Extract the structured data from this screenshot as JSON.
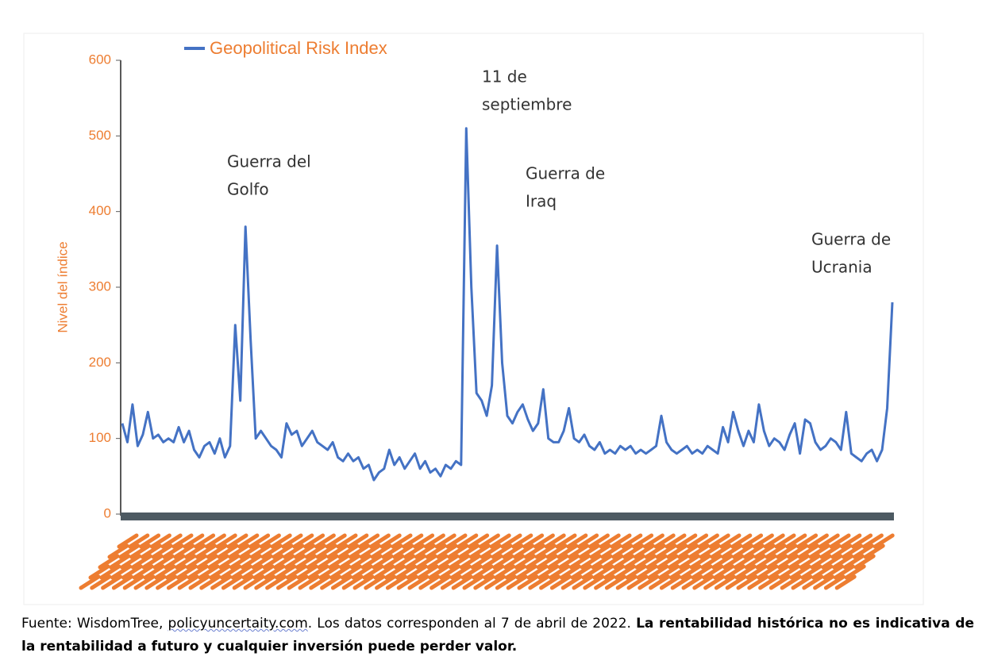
{
  "chart_data": {
    "type": "line",
    "legend": "Geopolitical Risk Index",
    "ylabel": "Nivel del índice",
    "ylim": [
      0,
      600
    ],
    "yticks": [
      0,
      100,
      200,
      300,
      400,
      500,
      600
    ],
    "grid": false,
    "categories": [
      null,
      null,
      null,
      null,
      null,
      null,
      null,
      null,
      null,
      null,
      null,
      null,
      null,
      null,
      null,
      null,
      null,
      null,
      null,
      null,
      null,
      null,
      null,
      null,
      null,
      null,
      null,
      null,
      null,
      null,
      null,
      null,
      null,
      null,
      null,
      null,
      null,
      null,
      null,
      null,
      null,
      null,
      null,
      null,
      null,
      null,
      null,
      null,
      null,
      null,
      null,
      null,
      null,
      null,
      null,
      null,
      null,
      null,
      null,
      null,
      null,
      null,
      null,
      null,
      null,
      null,
      null,
      null,
      null,
      null,
      null,
      null,
      null,
      null,
      null,
      null,
      null,
      null,
      null,
      null,
      null,
      null,
      null,
      null,
      null,
      null,
      null,
      null,
      null,
      null,
      null,
      null,
      null,
      null,
      null,
      null,
      null,
      null,
      null,
      null,
      null,
      null,
      null,
      null,
      null,
      null,
      null,
      null,
      null,
      null,
      null,
      null,
      null,
      null,
      null,
      null,
      null,
      null,
      null,
      null,
      null,
      null,
      null,
      null,
      null,
      null,
      null,
      null,
      null,
      null,
      null,
      null,
      null,
      null,
      null,
      null,
      null,
      null,
      null,
      null,
      null,
      null,
      null,
      null,
      null,
      null,
      null,
      null,
      null,
      null,
      null
    ],
    "series": [
      {
        "name": "Geopolitical Risk Index",
        "color": "#4472c4",
        "values": [
          120,
          95,
          145,
          90,
          105,
          135,
          100,
          105,
          95,
          100,
          95,
          115,
          95,
          110,
          85,
          75,
          90,
          95,
          80,
          100,
          75,
          90,
          250,
          150,
          380,
          230,
          100,
          110,
          100,
          90,
          85,
          75,
          120,
          105,
          110,
          90,
          100,
          110,
          95,
          90,
          85,
          95,
          75,
          70,
          80,
          70,
          75,
          60,
          65,
          45,
          55,
          60,
          85,
          65,
          75,
          60,
          70,
          80,
          60,
          70,
          55,
          60,
          50,
          65,
          60,
          70,
          65,
          510,
          300,
          160,
          150,
          130,
          170,
          355,
          200,
          130,
          120,
          135,
          145,
          125,
          110,
          120,
          165,
          100,
          95,
          95,
          110,
          140,
          100,
          95,
          105,
          90,
          85,
          95,
          80,
          85,
          80,
          90,
          85,
          90,
          80,
          85,
          80,
          85,
          90,
          130,
          95,
          85,
          80,
          85,
          90,
          80,
          85,
          80,
          90,
          85,
          80,
          115,
          95,
          135,
          110,
          90,
          110,
          95,
          145,
          110,
          90,
          100,
          95,
          85,
          105,
          120,
          80,
          125,
          120,
          95,
          85,
          90,
          100,
          95,
          85,
          135,
          80,
          75,
          70,
          80,
          85,
          70,
          85,
          140,
          280
        ]
      }
    ],
    "annotations": [
      {
        "lines": [
          "Guerra del",
          "Golfo"
        ]
      },
      {
        "lines": [
          "11 de",
          "septiembre"
        ]
      },
      {
        "lines": [
          "Guerra de",
          "Iraq"
        ]
      },
      {
        "lines": [
          "Guerra de",
          "Ucrania"
        ]
      }
    ]
  },
  "footer": {
    "source": "Fuente: WisdomTree, ",
    "link": "policyuncertaity.com",
    "note": ". Los datos corresponden al 7 de abril de 2022. ",
    "disclaimer": "La rentabilidad histórica no es indicativa de la rentabilidad a futuro y cualquier inversión puede perder valor."
  }
}
